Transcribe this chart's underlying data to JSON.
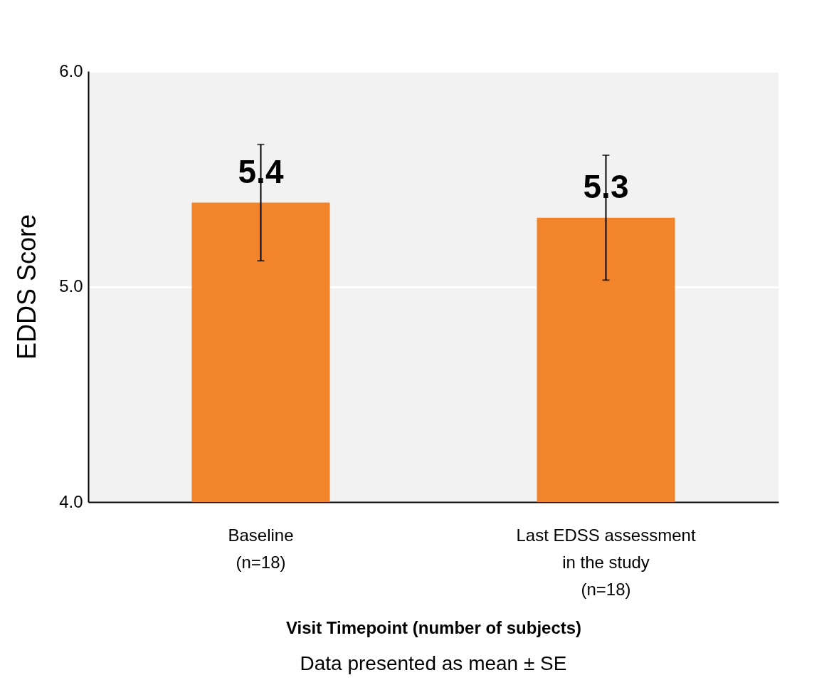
{
  "chart_data": {
    "type": "bar",
    "xlabel": "Visit Timepoint (number of subjects)",
    "ylabel": "EDDS Score",
    "categories": [
      "Baseline\n\n(n=18)",
      "Last EDSS assessment\nin the study\n(n=18)"
    ],
    "values": [
      5.39,
      5.32
    ],
    "value_labels": [
      "5.4",
      "5.3"
    ],
    "errors": [
      0.27,
      0.29
    ],
    "color": "#f2842b",
    "ylim": [
      4,
      6
    ],
    "yticks": [
      {
        "value": 4,
        "label": "4.0"
      },
      {
        "value": 5,
        "label": "5.0"
      },
      {
        "value": 6,
        "label": "6.0"
      }
    ],
    "grid": "y",
    "annotations": [
      "Data presented as mean ± SE"
    ]
  }
}
